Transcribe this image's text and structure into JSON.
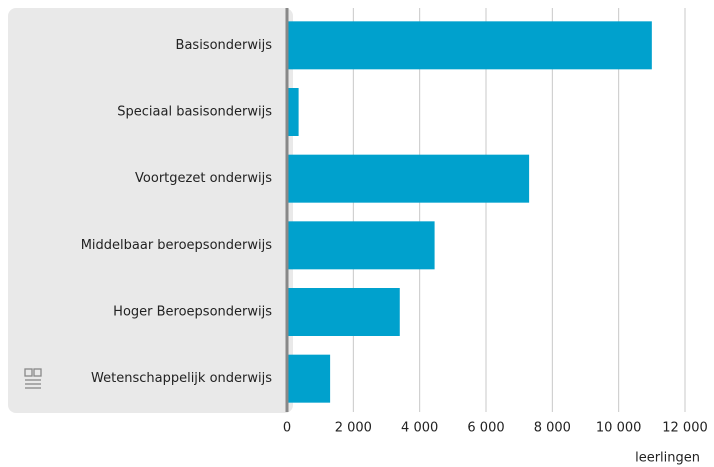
{
  "chart_data": {
    "type": "bar",
    "orientation": "horizontal",
    "categories": [
      "Basisonderwijs",
      "Speciaal basisonderwijs",
      "Voortgezet onderwijs",
      "Middelbaar beroepsonderwijs",
      "Hoger Beroepsonderwijs",
      "Wetenschappelijk onderwijs"
    ],
    "values": [
      11000,
      350,
      7300,
      4450,
      3400,
      1300
    ],
    "color": "#00a1cd",
    "xlabel": "leerlingen",
    "xlim": [
      0,
      12000
    ],
    "xticks": [
      0,
      {
        "value": 2000,
        "label": "2 000"
      },
      {
        "value": 4000,
        "label": "4 000"
      },
      {
        "value": 6000,
        "label": "6 000"
      },
      {
        "value": 8000,
        "label": "8 000"
      },
      {
        "value": 10000,
        "label": "10 000"
      },
      {
        "value": 12000,
        "label": "12 000"
      }
    ],
    "grid": true
  }
}
